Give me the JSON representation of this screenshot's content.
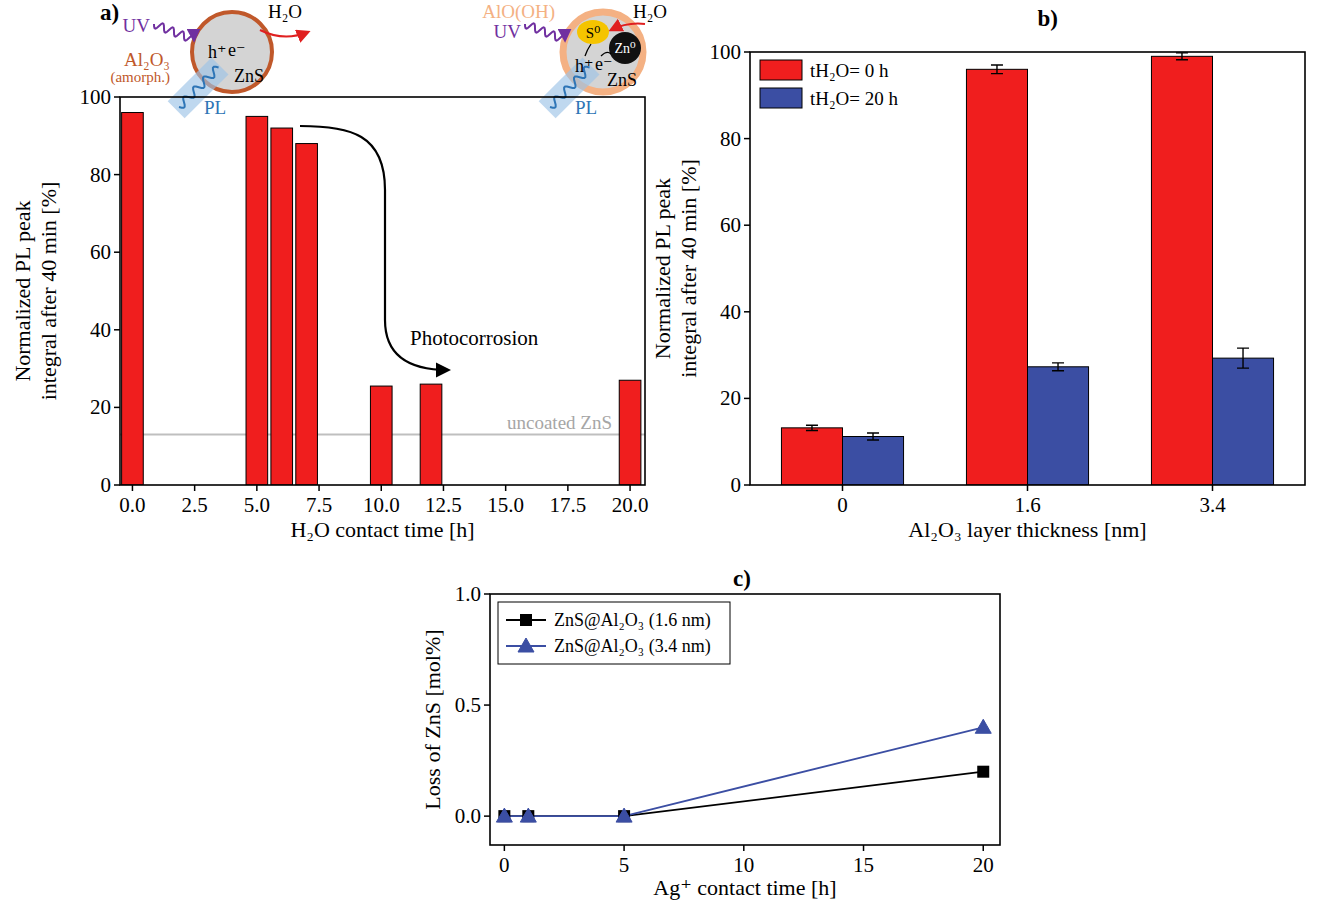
{
  "chart_data": [
    {
      "type": "bar",
      "panel": "a)",
      "x": [
        0,
        5,
        6,
        7,
        10,
        12,
        20
      ],
      "values": [
        96,
        95,
        92,
        88,
        25.5,
        26,
        27
      ],
      "color": "#f01e1e",
      "xlabel": "H₂O contact time [h]",
      "ylabel": "Normalized PL peak integral after 40 min [%]",
      "xlim": [
        -0.5,
        20.6
      ],
      "ylim": [
        0,
        100
      ],
      "xticks": [
        {
          "value": 0,
          "label": "0.0"
        },
        2.5,
        {
          "value": 5,
          "label": "5.0"
        },
        7.5,
        {
          "value": 10,
          "label": "10.0"
        },
        12.5,
        {
          "value": 15,
          "label": "15.0"
        },
        17.5,
        {
          "value": 20,
          "label": "20.0"
        }
      ],
      "yticks": [
        0,
        20,
        40,
        60,
        80,
        100
      ],
      "annotations": [
        {
          "text": "Photocorrosion"
        },
        {
          "text": "uncoated ZnS",
          "y": 13
        }
      ],
      "schematics": [
        {
          "shell": "Al₂O₃",
          "shell_note": "(amorph.)",
          "core": "ZnS",
          "light": "UV",
          "emission": "PL",
          "water": "H₂O",
          "holes": "h⁺",
          "electrons": "e⁻"
        },
        {
          "shell": "AlO(OH)",
          "core": "ZnS",
          "light": "UV",
          "emission": "PL",
          "water": "H₂O",
          "holes": "h⁺",
          "electrons": "e⁻",
          "sulfur": "S⁰",
          "zinc": "Zn⁰"
        }
      ]
    },
    {
      "type": "bar",
      "panel": "b)",
      "categories": [
        "0",
        "1.6",
        "3.4"
      ],
      "series": [
        {
          "name": "tH₂O= 0 h",
          "color": "#f01e1e",
          "values": [
            13.2,
            96,
            99
          ],
          "errors": [
            0.6,
            1,
            0.8
          ]
        },
        {
          "name": "tH₂O= 20 h",
          "color": "#3b4ea3",
          "values": [
            11.2,
            27.3,
            29.3
          ],
          "errors": [
            0.8,
            0.9,
            2.3
          ]
        }
      ],
      "xlabel": "Al₂O₃ layer thickness [nm]",
      "ylabel": "Normalized PL peak integral after 40 min [%]",
      "ylim": [
        0,
        100
      ],
      "yticks": [
        0,
        20,
        40,
        60,
        80,
        100
      ],
      "legend": "upper left"
    },
    {
      "type": "line",
      "panel": "c)",
      "x": [
        0,
        1,
        5,
        20
      ],
      "series": [
        {
          "name": "ZnS@Al₂O₃ (1.6 nm)",
          "color": "#000000",
          "marker": "square",
          "values": [
            0,
            0,
            0,
            0.2
          ]
        },
        {
          "name": "ZnS@Al₂O₃ (3.4 nm)",
          "color": "#3b4ea3",
          "marker": "triangle",
          "values": [
            0,
            0,
            0,
            0.4
          ]
        }
      ],
      "xlabel": "Ag⁺ contact time [h]",
      "ylabel": "Loss of ZnS [mol%]",
      "xlim": [
        -0.6,
        20.7
      ],
      "ylim": [
        -0.13,
        1.0
      ],
      "xticks": [
        0,
        5,
        10,
        15,
        20
      ],
      "yticks": [
        {
          "value": 0,
          "label": "0.0"
        },
        0.5,
        {
          "value": 1,
          "label": "1.0"
        }
      ],
      "legend": "upper left"
    }
  ]
}
